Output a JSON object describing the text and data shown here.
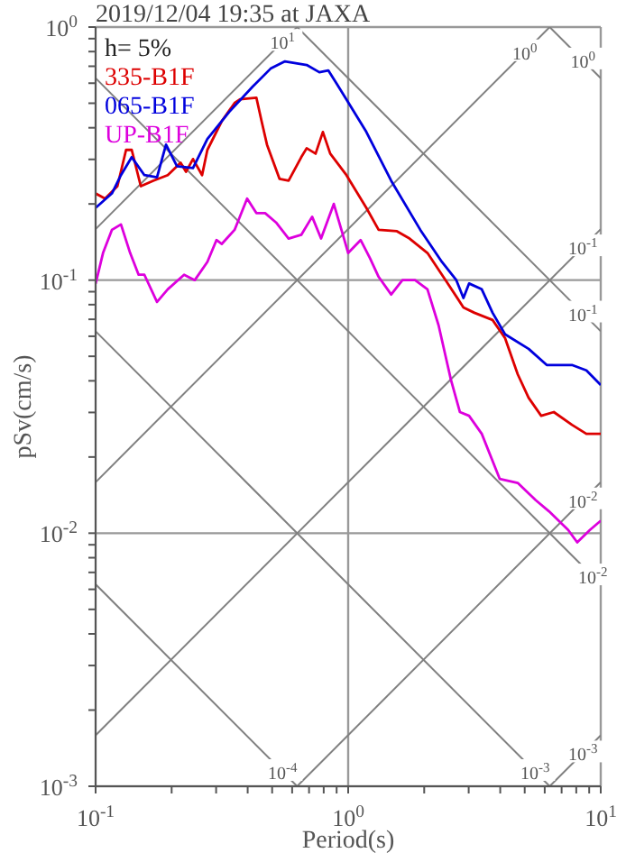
{
  "chart_data": {
    "type": "line",
    "title": "2019/12/04 19:35 at JAXA",
    "xlabel": "Period(s)",
    "ylabel": "pSv(cm/s)",
    "log": "xy",
    "grid": true,
    "legend": "top left",
    "marker": "none",
    "line_style": "solid",
    "xlim": [
      0.1,
      10
    ],
    "ylim": [
      0.001,
      1
    ],
    "xticks": [
      {
        "value": 0.1,
        "label": "10$^{-1}$"
      },
      {
        "value": 0.2,
        "label": null
      },
      {
        "value": 0.3,
        "label": null
      },
      {
        "value": 0.4,
        "label": null
      },
      {
        "value": 0.5,
        "label": null
      },
      {
        "value": 0.6,
        "label": null
      },
      {
        "value": 0.7,
        "label": null
      },
      {
        "value": 0.8,
        "label": null
      },
      {
        "value": 0.9,
        "label": null
      },
      {
        "value": 1,
        "label": "10$^{0}$"
      },
      {
        "value": 2,
        "label": null
      },
      {
        "value": 3,
        "label": null
      },
      {
        "value": 4,
        "label": null
      },
      {
        "value": 5,
        "label": null
      },
      {
        "value": 6,
        "label": null
      },
      {
        "value": 7,
        "label": null
      },
      {
        "value": 8,
        "label": null
      },
      {
        "value": 9,
        "label": null
      },
      {
        "value": 10,
        "label": "10$^{1}$"
      }
    ],
    "yticks": [
      {
        "value": 0.001,
        "label": "10$^{-3}$"
      },
      {
        "value": 0.002,
        "label": null
      },
      {
        "value": 0.003,
        "label": null
      },
      {
        "value": 0.004,
        "label": null
      },
      {
        "value": 0.005,
        "label": null
      },
      {
        "value": 0.006,
        "label": null
      },
      {
        "value": 0.007,
        "label": null
      },
      {
        "value": 0.008,
        "label": null
      },
      {
        "value": 0.009,
        "label": null
      },
      {
        "value": 0.01,
        "label": "10$^{-2}$"
      },
      {
        "value": 0.02,
        "label": null
      },
      {
        "value": 0.03,
        "label": null
      },
      {
        "value": 0.04,
        "label": null
      },
      {
        "value": 0.05,
        "label": null
      },
      {
        "value": 0.06,
        "label": null
      },
      {
        "value": 0.07,
        "label": null
      },
      {
        "value": 0.08,
        "label": null
      },
      {
        "value": 0.09,
        "label": null
      },
      {
        "value": 0.1,
        "label": "10$^{-1}$"
      },
      {
        "value": 0.2,
        "label": null
      },
      {
        "value": 0.3,
        "label": null
      },
      {
        "value": 0.4,
        "label": null
      },
      {
        "value": 0.5,
        "label": null
      },
      {
        "value": 0.6,
        "label": null
      },
      {
        "value": 0.7,
        "label": null
      },
      {
        "value": 0.8,
        "label": null
      },
      {
        "value": 0.9,
        "label": null
      },
      {
        "value": 1,
        "label": "10$^{0}$"
      }
    ],
    "annotations": [
      "h= 5%",
      {
        "text": "10$^{1}$",
        "x": 0.55,
        "y": 0.875
      },
      {
        "text": "10$^{0}$",
        "x": 5,
        "y": 0.796
      },
      {
        "text": "10$^{-1}$",
        "x": 8.5,
        "y": 0.135
      },
      {
        "text": "10$^{-2}$",
        "x": 8.5,
        "y": 0.0135
      },
      {
        "text": "10$^{-3}$",
        "x": 8.5,
        "y": 0.00135
      },
      {
        "text": "10$^{0}$",
        "x": 8.5,
        "y": 0.739
      },
      {
        "text": "10$^{-1}$",
        "x": 8.5,
        "y": 0.0739
      },
      {
        "text": "10$^{-2}$",
        "x": 9.3,
        "y": 0.00676
      },
      {
        "text": "10$^{-3}$",
        "x": 5.5,
        "y": 0.00114
      },
      {
        "text": "10$^{-4}$",
        "x": 0.55,
        "y": 0.00114
      }
    ],
    "series": [
      {
        "color": "#808080",
        "x": [
          6.28,
          10
        ],
        "values": [
          1,
          0.628
        ]
      },
      {
        "color": "#808080",
        "x": [
          0.628,
          10
        ],
        "values": [
          1,
          0.0628
        ]
      },
      {
        "color": "#808080",
        "x": [
          0.1,
          10
        ],
        "values": [
          0.628,
          0.00628
        ]
      },
      {
        "color": "#808080",
        "x": [
          0.1,
          6.28
        ],
        "values": [
          0.0628,
          0.001
        ]
      },
      {
        "color": "#808080",
        "x": [
          0.1,
          0.628
        ],
        "values": [
          0.00628,
          0.001
        ]
      },
      {
        "color": "#808080",
        "x": [
          0.1,
          0.628
        ],
        "values": [
          0.159,
          1
        ]
      },
      {
        "color": "#808080",
        "x": [
          0.1,
          6.28
        ],
        "values": [
          0.0159,
          1
        ]
      },
      {
        "color": "#808080",
        "x": [
          0.1,
          10
        ],
        "values": [
          0.00159,
          0.159
        ]
      },
      {
        "color": "#808080",
        "x": [
          0.628,
          10
        ],
        "values": [
          0.001,
          0.0159
        ]
      },
      {
        "color": "#808080",
        "x": [
          6.28,
          10
        ],
        "values": [
          0.001,
          0.00159
        ]
      },
      {
        "name": "335-B1F",
        "color": "#dd0000",
        "x": [
          0.1,
          0.109,
          0.122,
          0.132,
          0.139,
          0.151,
          0.169,
          0.193,
          0.217,
          0.228,
          0.243,
          0.264,
          0.277,
          0.316,
          0.355,
          0.373,
          0.433,
          0.454,
          0.477,
          0.535,
          0.581,
          0.652,
          0.685,
          0.743,
          0.794,
          0.849,
          0.984,
          1.18,
          1.32,
          1.56,
          1.75,
          2.06,
          2.43,
          2.86,
          3.16,
          3.73,
          4.18,
          4.69,
          5.18,
          5.81,
          6.52,
          7.69,
          8.77,
          10
        ],
        "values": [
          0.22,
          0.21,
          0.235,
          0.327,
          0.327,
          0.235,
          0.247,
          0.26,
          0.291,
          0.268,
          0.301,
          0.26,
          0.327,
          0.425,
          0.501,
          0.518,
          0.526,
          0.425,
          0.343,
          0.251,
          0.247,
          0.306,
          0.332,
          0.316,
          0.385,
          0.316,
          0.26,
          0.193,
          0.158,
          0.156,
          0.146,
          0.128,
          0.1,
          0.078,
          0.0743,
          0.0696,
          0.059,
          0.0425,
          0.0343,
          0.0291,
          0.0301,
          0.0268,
          0.0247,
          0.0247
        ]
      },
      {
        "name": "065-B1F",
        "color": "#0000dd",
        "x": [
          0.1,
          0.116,
          0.126,
          0.139,
          0.156,
          0.175,
          0.19,
          0.21,
          0.243,
          0.277,
          0.338,
          0.418,
          0.493,
          0.562,
          0.685,
          0.769,
          0.834,
          0.906,
          0.984,
          1.18,
          1.48,
          1.93,
          2.35,
          2.68,
          2.86,
          3.01,
          3.38,
          3.73,
          4.18,
          5.18,
          6.11,
          7.69,
          8.77,
          10
        ],
        "values": [
          0.193,
          0.22,
          0.26,
          0.306,
          0.26,
          0.255,
          0.343,
          0.282,
          0.277,
          0.361,
          0.462,
          0.581,
          0.685,
          0.732,
          0.708,
          0.663,
          0.674,
          0.591,
          0.518,
          0.385,
          0.247,
          0.158,
          0.118,
          0.1,
          0.085,
          0.097,
          0.092,
          0.0743,
          0.0611,
          0.0535,
          0.0462,
          0.0462,
          0.044,
          0.0385
        ]
      },
      {
        "name": "UP-B1F",
        "color": "#dd00dd",
        "x": [
          0.1,
          0.107,
          0.116,
          0.126,
          0.137,
          0.148,
          0.156,
          0.175,
          0.193,
          0.224,
          0.247,
          0.277,
          0.301,
          0.316,
          0.355,
          0.398,
          0.433,
          0.469,
          0.518,
          0.581,
          0.652,
          0.72,
          0.781,
          0.877,
          0.953,
          1.0,
          1.12,
          1.22,
          1.32,
          1.48,
          1.64,
          1.84,
          2.06,
          2.28,
          2.55,
          2.77,
          3.01,
          3.38,
          3.98,
          4.69,
          5.53,
          6.24,
          7.43,
          8.07,
          9.06,
          10
        ],
        "values": [
          0.0968,
          0.128,
          0.158,
          0.166,
          0.128,
          0.105,
          0.105,
          0.082,
          0.092,
          0.105,
          0.1,
          0.118,
          0.144,
          0.139,
          0.158,
          0.21,
          0.184,
          0.184,
          0.169,
          0.146,
          0.151,
          0.178,
          0.146,
          0.2,
          0.151,
          0.128,
          0.144,
          0.122,
          0.103,
          0.0877,
          0.1,
          0.1,
          0.092,
          0.0663,
          0.0405,
          0.0301,
          0.0291,
          0.0247,
          0.0164,
          0.0158,
          0.0135,
          0.0122,
          0.0103,
          0.0092,
          0.0103,
          0.0112
        ]
      }
    ]
  }
}
